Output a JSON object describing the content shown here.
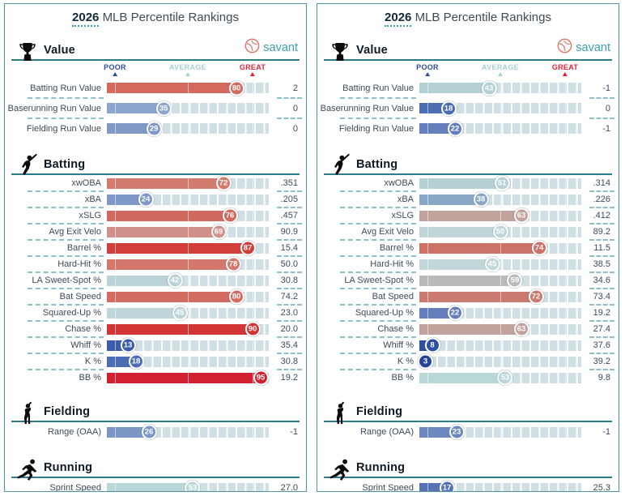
{
  "title": {
    "year": "2026",
    "rest": "MLB Percentile Rankings"
  },
  "brand": {
    "name": "savant"
  },
  "axis": {
    "poor": {
      "label": "POOR",
      "pct": 5,
      "color": "#2c4d9e"
    },
    "average": {
      "label": "AVERAGE",
      "pct": 50,
      "color": "#a9cdd4"
    },
    "great": {
      "label": "GREAT",
      "pct": 90,
      "color": "#d7263d"
    }
  },
  "colors": {
    "panel_border": "#4e96a3",
    "section_rule": "#2e7d8c",
    "separator_dash": "#8ec1ca",
    "track": "#cfdfe3",
    "title_year": "#15293a",
    "body_text": "#3c4b58",
    "brand_teal": "#3f9fae",
    "bubble_ring": "#ffffff"
  },
  "chart_data": [
    {
      "type": "bar",
      "title": "2026 MLB Percentile Rankings",
      "xlabel": "Percentile",
      "xlim": [
        0,
        100
      ],
      "sections": [
        {
          "name": "Value",
          "icon": "trophy-icon",
          "show_brand": true,
          "show_axis": true,
          "rows": [
            {
              "label": "Batting Run Value",
              "percentile": 80,
              "value": "2",
              "color": "#d4695e"
            },
            {
              "label": "Baserunning Run Value",
              "percentile": 35,
              "value": "0",
              "color": "#8da6cd"
            },
            {
              "label": "Fielding Run Value",
              "percentile": 29,
              "value": "0",
              "color": "#8099c6"
            }
          ]
        },
        {
          "name": "Batting",
          "icon": "batter-icon",
          "show_brand": false,
          "show_axis": false,
          "rows": [
            {
              "label": "xwOBA",
              "percentile": 72,
              "value": ".351",
              "color": "#d37b6f"
            },
            {
              "label": "xBA",
              "percentile": 24,
              "value": ".205",
              "color": "#7e99c9"
            },
            {
              "label": "xSLG",
              "percentile": 76,
              "value": ".457",
              "color": "#d06a5f"
            },
            {
              "label": "Avg Exit Velo",
              "percentile": 69,
              "value": "90.9",
              "color": "#d0918a"
            },
            {
              "label": "Barrel %",
              "percentile": 87,
              "value": "15.4",
              "color": "#d23e3a"
            },
            {
              "label": "Hard-Hit %",
              "percentile": 78,
              "value": "50.0",
              "color": "#d4776c"
            },
            {
              "label": "LA Sweet-Spot %",
              "percentile": 42,
              "value": "30.8",
              "color": "#bad3d8"
            },
            {
              "label": "Bat Speed",
              "percentile": 80,
              "value": "74.2",
              "color": "#d26c60"
            },
            {
              "label": "Squared-Up %",
              "percentile": 45,
              "value": "23.0",
              "color": "#bed5d9"
            },
            {
              "label": "Chase %",
              "percentile": 90,
              "value": "20.0",
              "color": "#d23535"
            },
            {
              "label": "Whiff %",
              "percentile": 13,
              "value": "35.4",
              "color": "#3c5dab"
            },
            {
              "label": "K %",
              "percentile": 18,
              "value": "30.8",
              "color": "#4c6db4"
            },
            {
              "label": "BB %",
              "percentile": 95,
              "value": "19.2",
              "color": "#d12030"
            }
          ]
        },
        {
          "name": "Fielding",
          "icon": "fielder-icon",
          "show_brand": false,
          "show_axis": false,
          "rows": [
            {
              "label": "Range (OAA)",
              "percentile": 26,
              "value": "-1",
              "color": "#7b95c5"
            }
          ]
        },
        {
          "name": "Running",
          "icon": "runner-icon",
          "show_brand": false,
          "show_axis": false,
          "rows": [
            {
              "label": "Sprint Speed",
              "percentile": 53,
              "value": "27.0",
              "color": "#bad7d7"
            }
          ]
        }
      ]
    },
    {
      "type": "bar",
      "title": "2026 MLB Percentile Rankings",
      "xlabel": "Percentile",
      "xlim": [
        0,
        100
      ],
      "sections": [
        {
          "name": "Value",
          "icon": "trophy-icon",
          "show_brand": true,
          "show_axis": true,
          "rows": [
            {
              "label": "Batting Run Value",
              "percentile": 43,
              "value": "-1",
              "color": "#b4d0d5"
            },
            {
              "label": "Baserunning Run Value",
              "percentile": 18,
              "value": "0",
              "color": "#4c6db4"
            },
            {
              "label": "Fielding Run Value",
              "percentile": 22,
              "value": "-1",
              "color": "#647fbc"
            }
          ]
        },
        {
          "name": "Batting",
          "icon": "batter-icon",
          "show_brand": false,
          "show_axis": false,
          "rows": [
            {
              "label": "xwOBA",
              "percentile": 51,
              "value": ".314",
              "color": "#b6d1d5"
            },
            {
              "label": "xBA",
              "percentile": 38,
              "value": ".226",
              "color": "#88a6c6"
            },
            {
              "label": "xSLG",
              "percentile": 63,
              "value": ".412",
              "color": "#c2a29d"
            },
            {
              "label": "Avg Exit Velo",
              "percentile": 50,
              "value": "89.2",
              "color": "#bfd5d8"
            },
            {
              "label": "Barrel %",
              "percentile": 74,
              "value": "11.5",
              "color": "#cc7266"
            },
            {
              "label": "Hard-Hit %",
              "percentile": 45,
              "value": "38.5",
              "color": "#c2d7da"
            },
            {
              "label": "LA Sweet-Spot %",
              "percentile": 59,
              "value": "34.6",
              "color": "#b9babb"
            },
            {
              "label": "Bat Speed",
              "percentile": 72,
              "value": "73.4",
              "color": "#cb7a70"
            },
            {
              "label": "Squared-Up %",
              "percentile": 22,
              "value": "19.2",
              "color": "#647fbc"
            },
            {
              "label": "Chase %",
              "percentile": 63,
              "value": "27.4",
              "color": "#c2a29d"
            },
            {
              "label": "Whiff %",
              "percentile": 8,
              "value": "37.6",
              "color": "#2e50a3"
            },
            {
              "label": "K %",
              "percentile": 3,
              "value": "39.2",
              "color": "#27439a"
            },
            {
              "label": "BB %",
              "percentile": 53,
              "value": "9.8",
              "color": "#bad7d7"
            }
          ]
        },
        {
          "name": "Fielding",
          "icon": "fielder-icon",
          "show_brand": false,
          "show_axis": false,
          "rows": [
            {
              "label": "Range (OAA)",
              "percentile": 23,
              "value": "-1",
              "color": "#6c88bf"
            }
          ]
        },
        {
          "name": "Running",
          "icon": "runner-icon",
          "show_brand": false,
          "show_axis": false,
          "rows": [
            {
              "label": "Sprint Speed",
              "percentile": 17,
              "value": "25.3",
              "color": "#5573b5"
            }
          ]
        }
      ]
    }
  ]
}
